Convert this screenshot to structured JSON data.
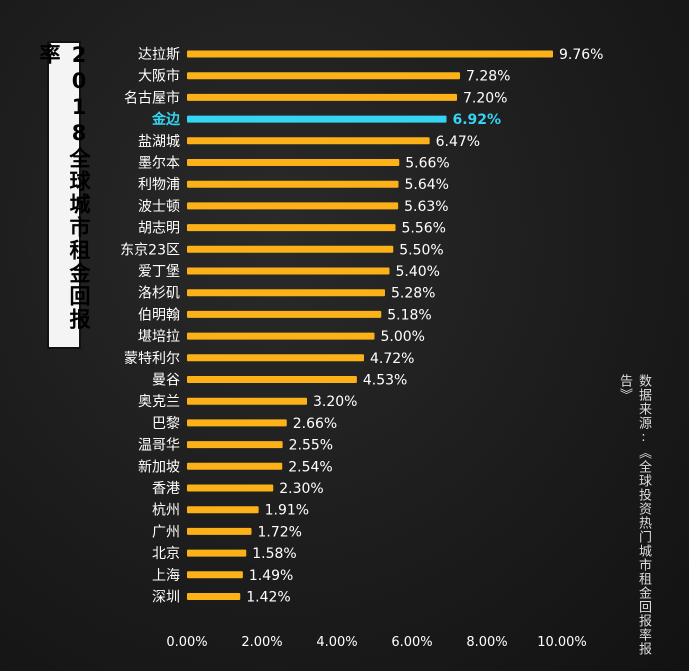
{
  "title": "2018全球城市租金回报率",
  "source": "数据来源:《全球投资热门城市租金回报率报告》",
  "colors": {
    "bar": "#fbb117",
    "highlight": "#35d4f2",
    "text": "#ffffff"
  },
  "chart_data": {
    "type": "bar",
    "orientation": "horizontal",
    "categories": [
      "达拉斯",
      "大阪市",
      "名古屋市",
      "金边",
      "盐湖城",
      "墨尔本",
      "利物浦",
      "波士顿",
      "胡志明",
      "东京23区",
      "爱丁堡",
      "洛杉矶",
      "伯明翰",
      "堪培拉",
      "蒙特利尔",
      "曼谷",
      "奥克兰",
      "巴黎",
      "温哥华",
      "新加坡",
      "香港",
      "杭州",
      "广州",
      "北京",
      "上海",
      "深圳"
    ],
    "values": [
      9.76,
      7.28,
      7.2,
      6.92,
      6.47,
      5.66,
      5.64,
      5.63,
      5.56,
      5.5,
      5.4,
      5.28,
      5.18,
      5.0,
      4.72,
      4.53,
      3.2,
      2.66,
      2.55,
      2.54,
      2.3,
      1.91,
      1.72,
      1.58,
      1.49,
      1.42
    ],
    "value_labels": [
      "9.76%",
      "7.28%",
      "7.20%",
      "6.92%",
      "6.47%",
      "5.66%",
      "5.64%",
      "5.63%",
      "5.56%",
      "5.50%",
      "5.40%",
      "5.28%",
      "5.18%",
      "5.00%",
      "4.72%",
      "4.53%",
      "3.20%",
      "2.66%",
      "2.55%",
      "2.54%",
      "2.30%",
      "1.91%",
      "1.72%",
      "1.58%",
      "1.49%",
      "1.42%"
    ],
    "highlight_category": "金边",
    "x_ticks": [
      "0.00%",
      "2.00%",
      "4.00%",
      "6.00%",
      "8.00%",
      "10.00%"
    ],
    "xlim": [
      0,
      10
    ],
    "grid": false,
    "legend": "none"
  }
}
